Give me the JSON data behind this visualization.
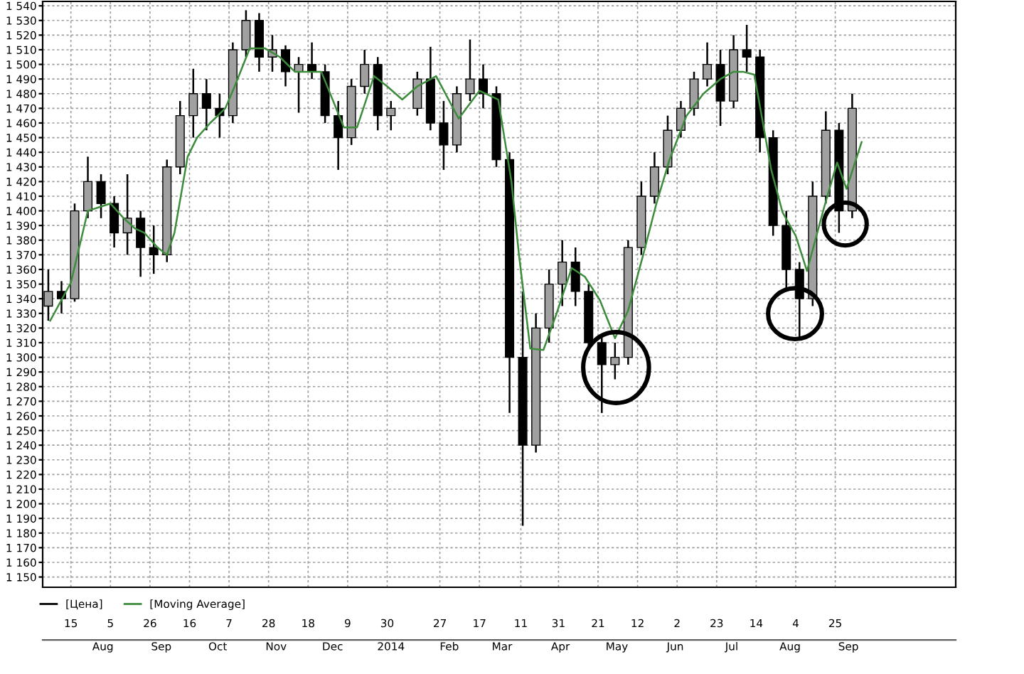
{
  "chart_data": {
    "type": "candlestick",
    "series": [
      {
        "name": "[Цена]",
        "color": "#000000",
        "x": [
          "2013-07-03",
          "2013-07-10",
          "2013-07-17",
          "2013-07-24",
          "2013-07-31",
          "2013-08-07",
          "2013-08-14",
          "2013-08-21",
          "2013-08-28",
          "2013-09-04",
          "2013-09-11",
          "2013-09-18",
          "2013-09-25",
          "2013-10-02",
          "2013-10-09",
          "2013-10-16",
          "2013-10-23",
          "2013-10-30",
          "2013-11-06",
          "2013-11-13",
          "2013-11-20",
          "2013-11-27",
          "2013-12-04",
          "2013-12-11",
          "2013-12-18",
          "2013-12-25",
          "2014-01-01",
          "2014-01-15",
          "2014-01-22",
          "2014-01-29",
          "2014-02-05",
          "2014-02-12",
          "2014-02-19",
          "2014-02-26",
          "2014-03-05",
          "2014-03-12",
          "2014-03-19",
          "2014-03-26",
          "2014-04-02",
          "2014-04-09",
          "2014-04-16",
          "2014-04-23",
          "2014-04-30",
          "2014-05-07",
          "2014-05-14",
          "2014-05-21",
          "2014-05-28",
          "2014-06-04",
          "2014-06-11",
          "2014-06-18",
          "2014-06-25",
          "2014-07-02",
          "2014-07-09",
          "2014-07-16",
          "2014-07-23",
          "2014-07-30",
          "2014-08-06",
          "2014-08-13",
          "2014-08-20",
          "2014-08-27",
          "2014-09-03"
        ],
        "ohlc": [
          [
            1335,
            1360,
            1325,
            1345
          ],
          [
            1345,
            1352,
            1330,
            1340
          ],
          [
            1340,
            1405,
            1338,
            1400
          ],
          [
            1400,
            1437,
            1395,
            1420
          ],
          [
            1420,
            1425,
            1395,
            1405
          ],
          [
            1405,
            1410,
            1375,
            1385
          ],
          [
            1385,
            1425,
            1370,
            1395
          ],
          [
            1395,
            1400,
            1355,
            1375
          ],
          [
            1375,
            1390,
            1357,
            1370
          ],
          [
            1370,
            1435,
            1365,
            1430
          ],
          [
            1430,
            1475,
            1425,
            1465
          ],
          [
            1465,
            1497,
            1450,
            1480
          ],
          [
            1480,
            1490,
            1455,
            1470
          ],
          [
            1470,
            1480,
            1450,
            1465
          ],
          [
            1465,
            1515,
            1460,
            1510
          ],
          [
            1510,
            1537,
            1505,
            1530
          ],
          [
            1530,
            1535,
            1495,
            1505
          ],
          [
            1505,
            1520,
            1495,
            1510
          ],
          [
            1510,
            1513,
            1485,
            1495
          ],
          [
            1495,
            1505,
            1467,
            1500
          ],
          [
            1500,
            1515,
            1490,
            1495
          ],
          [
            1495,
            1500,
            1460,
            1465
          ],
          [
            1465,
            1475,
            1428,
            1450
          ],
          [
            1450,
            1490,
            1445,
            1485
          ],
          [
            1485,
            1510,
            1480,
            1500
          ],
          [
            1500,
            1505,
            1455,
            1465
          ],
          [
            1465,
            1475,
            1455,
            1470
          ],
          [
            1470,
            1495,
            1465,
            1490
          ],
          [
            1490,
            1512,
            1455,
            1460
          ],
          [
            1460,
            1475,
            1428,
            1445
          ],
          [
            1445,
            1485,
            1440,
            1480
          ],
          [
            1480,
            1517,
            1475,
            1490
          ],
          [
            1490,
            1500,
            1470,
            1480
          ],
          [
            1480,
            1485,
            1430,
            1435
          ],
          [
            1435,
            1440,
            1262,
            1300
          ],
          [
            1300,
            1345,
            1185,
            1240
          ],
          [
            1240,
            1330,
            1235,
            1320
          ],
          [
            1320,
            1360,
            1310,
            1350
          ],
          [
            1350,
            1380,
            1335,
            1365
          ],
          [
            1365,
            1375,
            1335,
            1345
          ],
          [
            1345,
            1350,
            1305,
            1310
          ],
          [
            1310,
            1315,
            1262,
            1295
          ],
          [
            1295,
            1310,
            1285,
            1300
          ],
          [
            1300,
            1380,
            1295,
            1375
          ],
          [
            1375,
            1420,
            1370,
            1410
          ],
          [
            1410,
            1440,
            1405,
            1430
          ],
          [
            1430,
            1465,
            1425,
            1455
          ],
          [
            1455,
            1475,
            1450,
            1470
          ],
          [
            1470,
            1495,
            1465,
            1490
          ],
          [
            1490,
            1515,
            1485,
            1500
          ],
          [
            1500,
            1510,
            1458,
            1475
          ],
          [
            1475,
            1520,
            1470,
            1510
          ],
          [
            1510,
            1527,
            1495,
            1505
          ],
          [
            1505,
            1510,
            1440,
            1450
          ],
          [
            1450,
            1455,
            1383,
            1390
          ],
          [
            1390,
            1400,
            1345,
            1360
          ],
          [
            1360,
            1365,
            1312,
            1340
          ],
          [
            1340,
            1420,
            1335,
            1410
          ],
          [
            1410,
            1468,
            1405,
            1455
          ],
          [
            1455,
            1460,
            1385,
            1400
          ],
          [
            1400,
            1480,
            1395,
            1470
          ]
        ]
      },
      {
        "name": "[Moving Average]",
        "type": "line",
        "color": "#3c8c3c",
        "x": [
          "2013-07-04",
          "2013-07-15",
          "2013-07-24",
          "2013-08-05",
          "2013-08-12",
          "2013-08-18",
          "2013-08-23",
          "2013-08-30",
          "2013-09-04",
          "2013-09-08",
          "2013-09-15",
          "2013-09-20",
          "2013-09-27",
          "2013-10-05",
          "2013-10-10",
          "2013-10-18",
          "2013-10-26",
          "2013-11-03",
          "2013-11-11",
          "2013-11-25",
          "2013-12-07",
          "2013-12-14",
          "2013-12-23",
          "2013-12-30",
          "2014-01-07",
          "2014-01-15",
          "2014-01-25",
          "2014-02-06",
          "2014-02-17",
          "2014-02-27",
          "2014-03-06",
          "2014-03-10",
          "2014-03-16",
          "2014-03-23",
          "2014-03-30",
          "2014-04-07",
          "2014-04-14",
          "2014-04-22",
          "2014-04-30",
          "2014-05-07",
          "2014-05-15",
          "2014-05-22",
          "2014-05-29",
          "2014-06-07",
          "2014-06-16",
          "2014-06-25",
          "2014-07-02",
          "2014-07-07",
          "2014-07-13",
          "2014-07-22",
          "2014-07-28",
          "2014-08-04",
          "2014-08-10",
          "2014-08-19",
          "2014-08-26",
          "2014-08-31",
          "2014-09-08"
        ],
        "values": [
          1325,
          1351,
          1400,
          1405,
          1395,
          1388,
          1385,
          1375,
          1370,
          1385,
          1437,
          1450,
          1460,
          1470,
          1485,
          1511,
          1511,
          1505,
          1495,
          1495,
          1457,
          1457,
          1492,
          1485,
          1476,
          1485,
          1492,
          1463,
          1482,
          1476,
          1420,
          1370,
          1306,
          1305,
          1330,
          1361,
          1355,
          1339,
          1313,
          1332,
          1370,
          1405,
          1435,
          1465,
          1480,
          1490,
          1495,
          1495,
          1493,
          1428,
          1399,
          1383,
          1359,
          1402,
          1433,
          1415,
          1447
        ]
      }
    ],
    "xlim": [
      "2013-06-30",
      "2014-10-28"
    ],
    "xticks": [
      {
        "value": "2013-07-15",
        "label": "15"
      },
      {
        "value": "2013-08-05",
        "label": "5"
      },
      {
        "value": "2013-08-26",
        "label": "26"
      },
      {
        "value": "2013-09-16",
        "label": "16"
      },
      {
        "value": "2013-10-07",
        "label": "7"
      },
      {
        "value": "2013-10-28",
        "label": "28"
      },
      {
        "value": "2013-11-18",
        "label": "18"
      },
      {
        "value": "2013-12-09",
        "label": "9"
      },
      {
        "value": "2013-12-30",
        "label": "30"
      },
      {
        "value": "2014-01-27",
        "label": "27"
      },
      {
        "value": "2014-02-17",
        "label": "17"
      },
      {
        "value": "2014-03-11",
        "label": "11"
      },
      {
        "value": "2014-03-31",
        "label": "31"
      },
      {
        "value": "2014-04-21",
        "label": "21"
      },
      {
        "value": "2014-05-12",
        "label": "12"
      },
      {
        "value": "2014-06-02",
        "label": "2"
      },
      {
        "value": "2014-06-23",
        "label": "23"
      },
      {
        "value": "2014-07-14",
        "label": "14"
      },
      {
        "value": "2014-08-04",
        "label": "4"
      },
      {
        "value": "2014-08-25",
        "label": "25"
      }
    ],
    "x2lim": [
      "2013-06-30",
      "2014-10-28"
    ],
    "x2ticks": [
      {
        "value": "2013-08-01",
        "label": "Aug"
      },
      {
        "value": "2013-09-01",
        "label": "Sep"
      },
      {
        "value": "2013-10-01",
        "label": "Oct"
      },
      {
        "value": "2013-11-01",
        "label": "Nov"
      },
      {
        "value": "2013-12-01",
        "label": "Dec"
      },
      {
        "value": "2014-01-01",
        "label": "2014"
      },
      {
        "value": "2014-02-01",
        "label": "Feb"
      },
      {
        "value": "2014-03-01",
        "label": "Mar"
      },
      {
        "value": "2014-04-01",
        "label": "Apr"
      },
      {
        "value": "2014-05-01",
        "label": "May"
      },
      {
        "value": "2014-06-01",
        "label": "Jun"
      },
      {
        "value": "2014-07-01",
        "label": "Jul"
      },
      {
        "value": "2014-08-01",
        "label": "Aug"
      },
      {
        "value": "2014-09-01",
        "label": "Sep"
      }
    ],
    "ylim": [
      1143,
      1543
    ],
    "yticks": [
      {
        "value": 1150,
        "label": "1 150"
      },
      {
        "value": 1160,
        "label": "1 160"
      },
      {
        "value": 1170,
        "label": "1 170"
      },
      {
        "value": 1180,
        "label": "1 180"
      },
      {
        "value": 1190,
        "label": "1 190"
      },
      {
        "value": 1200,
        "label": "1 200"
      },
      {
        "value": 1210,
        "label": "1 210"
      },
      {
        "value": 1220,
        "label": "1 220"
      },
      {
        "value": 1230,
        "label": "1 230"
      },
      {
        "value": 1240,
        "label": "1 240"
      },
      {
        "value": 1250,
        "label": "1 250"
      },
      {
        "value": 1260,
        "label": "1 260"
      },
      {
        "value": 1270,
        "label": "1 270"
      },
      {
        "value": 1280,
        "label": "1 280"
      },
      {
        "value": 1290,
        "label": "1 290"
      },
      {
        "value": 1300,
        "label": "1 300"
      },
      {
        "value": 1310,
        "label": "1 310"
      },
      {
        "value": 1320,
        "label": "1 320"
      },
      {
        "value": 1330,
        "label": "1 330"
      },
      {
        "value": 1340,
        "label": "1 340"
      },
      {
        "value": 1350,
        "label": "1 350"
      },
      {
        "value": 1360,
        "label": "1 360"
      },
      {
        "value": 1370,
        "label": "1 370"
      },
      {
        "value": 1380,
        "label": "1 380"
      },
      {
        "value": 1390,
        "label": "1 390"
      },
      {
        "value": 1400,
        "label": "1 400"
      },
      {
        "value": 1410,
        "label": "1 410"
      },
      {
        "value": 1420,
        "label": "1 420"
      },
      {
        "value": 1430,
        "label": "1 430"
      },
      {
        "value": 1440,
        "label": "1 440"
      },
      {
        "value": 1450,
        "label": "1 450"
      },
      {
        "value": 1460,
        "label": "1 460"
      },
      {
        "value": 1470,
        "label": "1 470"
      },
      {
        "value": 1480,
        "label": "1 480"
      },
      {
        "value": 1490,
        "label": "1 490"
      },
      {
        "value": 1500,
        "label": "1 500"
      },
      {
        "value": 1510,
        "label": "1 510"
      },
      {
        "value": 1520,
        "label": "1 520"
      },
      {
        "value": 1530,
        "label": "1 530"
      },
      {
        "value": 1540,
        "label": "1 540"
      }
    ],
    "grid": true,
    "legend": "bottom left"
  }
}
